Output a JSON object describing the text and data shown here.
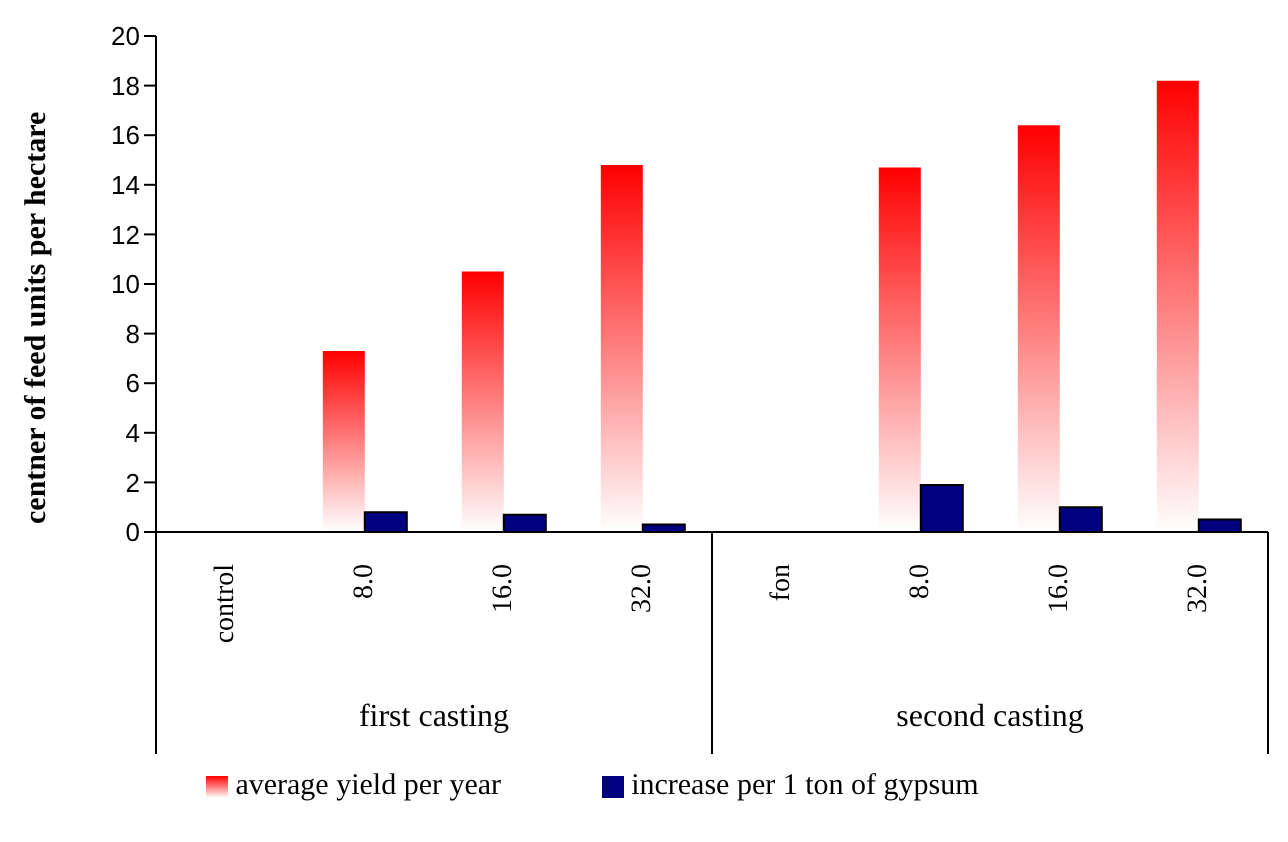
{
  "chart_data": {
    "type": "bar",
    "ylabel": "centner of feed units per hectare",
    "categories": [
      "control",
      "8.0",
      "16.0",
      "32.0",
      "fon",
      "8.0",
      "16.0",
      "32.0"
    ],
    "series": [
      {
        "name": "average yield per year",
        "color": "#ff0000",
        "values": [
          null,
          7.3,
          10.5,
          14.8,
          null,
          14.7,
          16.4,
          18.2
        ]
      },
      {
        "name": "increase per 1 ton of gypsum",
        "color": "#000080",
        "values": [
          null,
          0.8,
          0.7,
          0.3,
          null,
          1.9,
          1.0,
          0.5
        ]
      }
    ],
    "ylim": [
      0,
      20
    ],
    "yticks": [
      0,
      2,
      4,
      6,
      8,
      10,
      12,
      14,
      16,
      18,
      20
    ],
    "grid": false,
    "legend": "bottom",
    "annotations": [
      "first casting",
      "second casting"
    ]
  }
}
